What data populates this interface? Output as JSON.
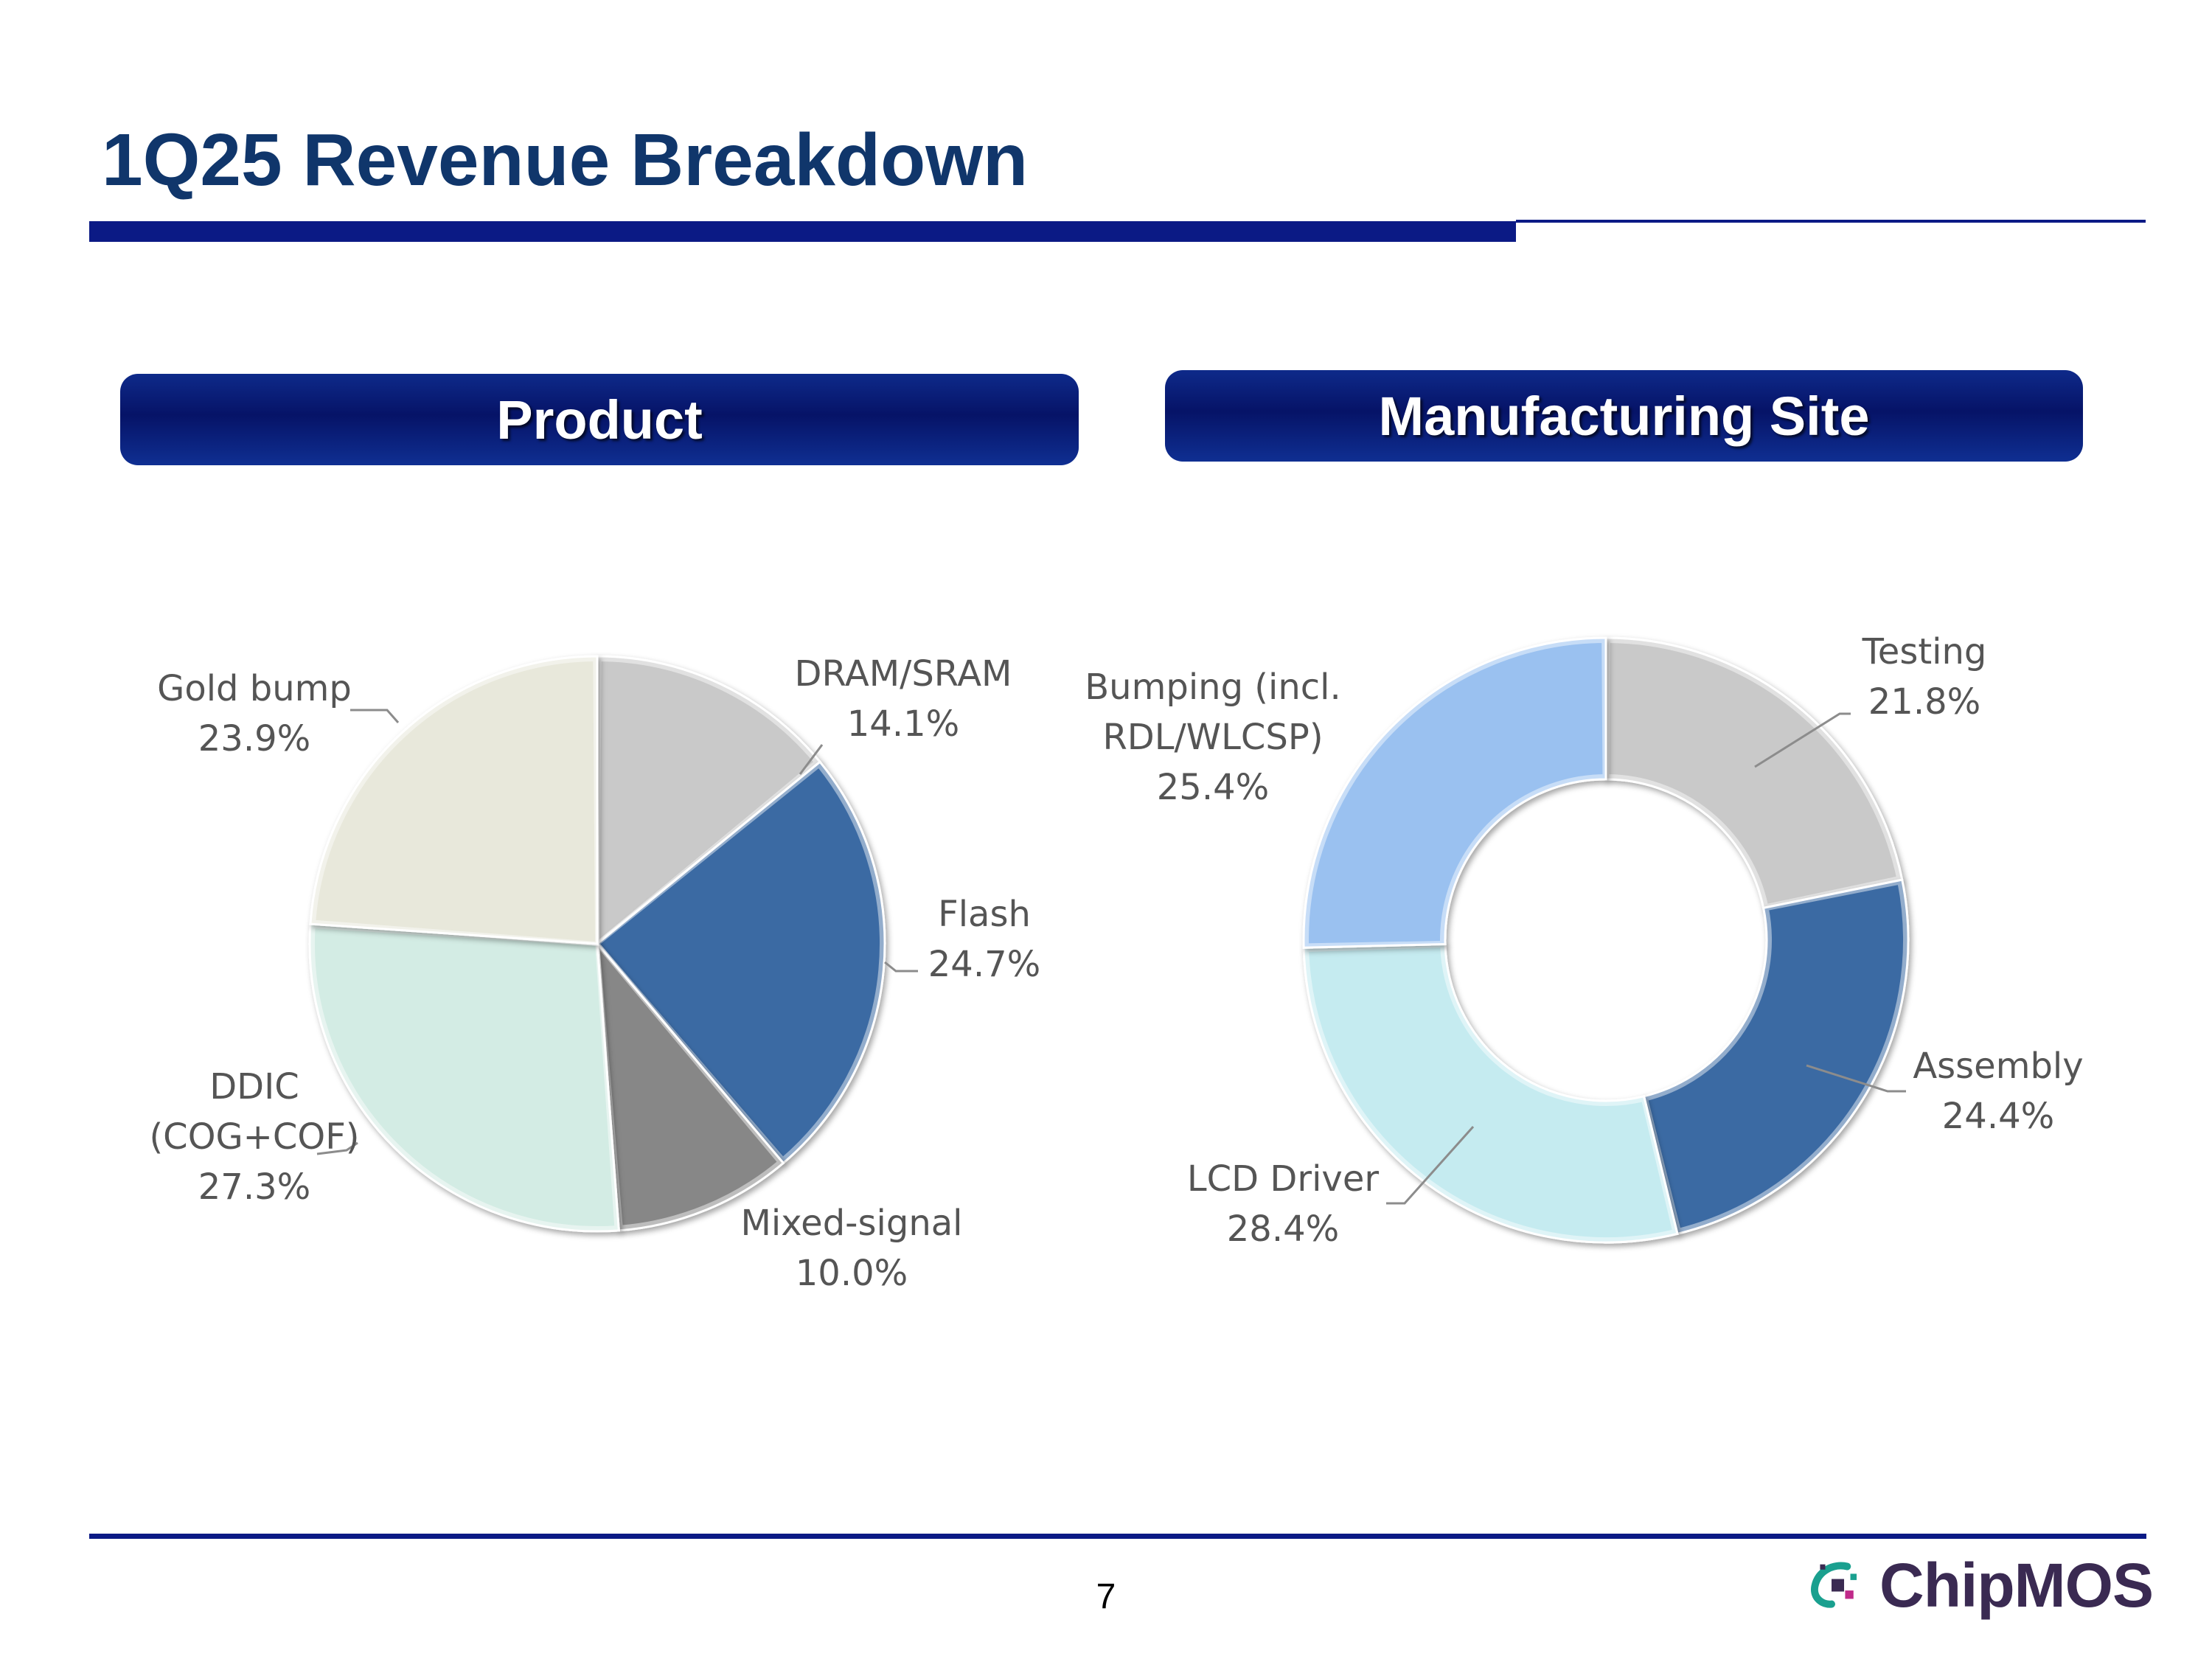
{
  "slide": {
    "title": "1Q25 Revenue Breakdown",
    "page_number": "7",
    "logo_text": "ChipMOS"
  },
  "sections": {
    "product": "Product",
    "site": "Manufacturing Site"
  },
  "colors": {
    "title": "#10366b",
    "rule": "#0b1a85",
    "header_dark": "#061367",
    "logo_teal": "#1aa08f",
    "logo_purple": "#3a2a52"
  },
  "chart_data": [
    {
      "type": "pie",
      "title": "Product",
      "start_angle_deg": 0,
      "direction": "clockwise",
      "slices": [
        {
          "name": "DRAM/SRAM",
          "value": 14.1,
          "label_lines": [
            "DRAM/SRAM",
            "14.1%"
          ],
          "color": "#c9c9c9"
        },
        {
          "name": "Flash",
          "value": 24.7,
          "label_lines": [
            "Flash",
            "24.7%"
          ],
          "color": "#3b6aa3"
        },
        {
          "name": "Mixed-signal",
          "value": 10.0,
          "label_lines": [
            "Mixed-signal",
            "10.0%"
          ],
          "color": "#878787"
        },
        {
          "name": "DDIC (COG+COF)",
          "value": 27.3,
          "label_lines": [
            "DDIC",
            "(COG+COF)",
            "27.3%"
          ],
          "color": "#d3ece4"
        },
        {
          "name": "Gold bump",
          "value": 23.9,
          "label_lines": [
            "Gold bump",
            "23.9%"
          ],
          "color": "#e8e8db"
        }
      ]
    },
    {
      "type": "pie",
      "subtype": "doughnut",
      "title": "Manufacturing Site",
      "start_angle_deg": 0,
      "direction": "clockwise",
      "slices": [
        {
          "name": "Testing",
          "value": 21.8,
          "label_lines": [
            "Testing",
            "21.8%"
          ],
          "color": "#c9c9c9"
        },
        {
          "name": "Assembly",
          "value": 24.4,
          "label_lines": [
            "Assembly",
            "24.4%"
          ],
          "color": "#3b6aa3"
        },
        {
          "name": "LCD Driver",
          "value": 28.4,
          "label_lines": [
            "LCD Driver",
            "28.4%"
          ],
          "color": "#c5ebf0"
        },
        {
          "name": "Bumping (incl. RDL/WLCSP)",
          "value": 25.4,
          "label_lines": [
            "Bumping (incl.",
            "RDL/WLCSP)",
            "25.4%"
          ],
          "color": "#9ac1f0"
        }
      ]
    }
  ]
}
